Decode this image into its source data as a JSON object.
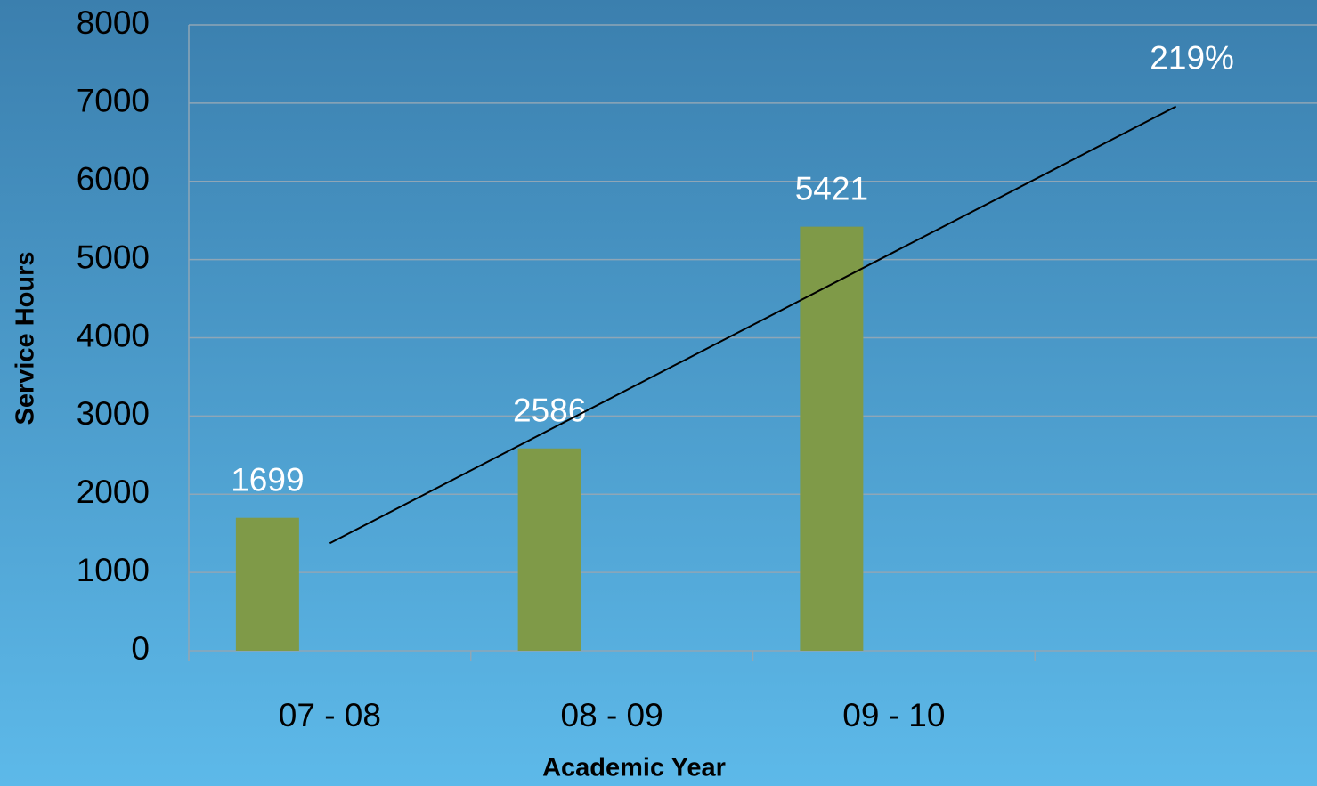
{
  "chart_data": {
    "type": "bar",
    "x_label": "Academic Year",
    "y_label": "Service Hours",
    "categories": [
      "07 - 08",
      "08 - 09",
      "09 - 10",
      null
    ],
    "values": [
      1699,
      2586,
      5421,
      null
    ],
    "color": "#7f9a48",
    "trendline": {
      "values": [
        1374,
        3235,
        5096,
        6957
      ],
      "color": "#000000"
    },
    "annotation": "219%",
    "ylim": [
      0,
      8000
    ],
    "yticks": [
      0,
      1000,
      2000,
      3000,
      4000,
      5000,
      6000,
      7000,
      8000
    ],
    "grid": true
  }
}
